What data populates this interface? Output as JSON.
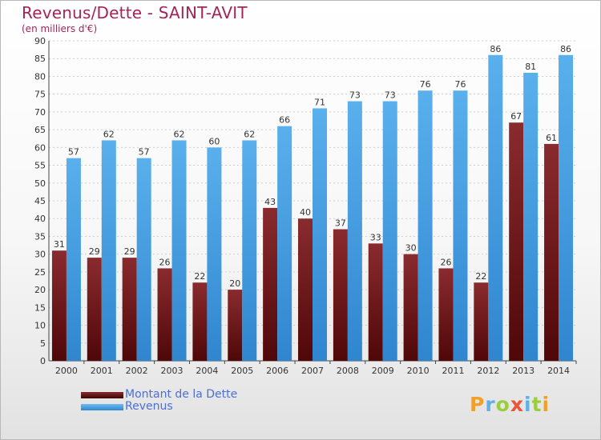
{
  "header": {
    "title": "Revenus/Dette - SAINT-AVIT",
    "subtitle": "(en milliers d'€)"
  },
  "logo": {
    "text": "Proxiti",
    "letters": [
      {
        "char": "P",
        "color": "#f0a02b"
      },
      {
        "char": "r",
        "color": "#5fb0e5"
      },
      {
        "char": "o",
        "color": "#9acd42"
      },
      {
        "char": "x",
        "color": "#e8553a"
      },
      {
        "char": "i",
        "color": "#5fb0e5"
      },
      {
        "char": "t",
        "color": "#9acd42"
      },
      {
        "char": "i",
        "color": "#f0a02b"
      }
    ]
  },
  "chart_data": {
    "type": "bar",
    "title": "Revenus/Dette - SAINT-AVIT",
    "subtitle": "(en milliers d'€)",
    "categories": [
      "2000",
      "2001",
      "2002",
      "2003",
      "2004",
      "2005",
      "2006",
      "2007",
      "2008",
      "2009",
      "2010",
      "2011",
      "2012",
      "2013",
      "2014"
    ],
    "series": [
      {
        "name": "Montant de la Dette",
        "color": "#7b1f22",
        "values": [
          31,
          29,
          29,
          26,
          22,
          20,
          43,
          40,
          37,
          33,
          30,
          26,
          22,
          67,
          61
        ]
      },
      {
        "name": "Revenus",
        "color": "#4aa3e6",
        "values": [
          57,
          62,
          57,
          62,
          60,
          62,
          66,
          71,
          73,
          73,
          76,
          76,
          86,
          81,
          86
        ]
      }
    ],
    "ylim": [
      0,
      90
    ],
    "yticks": [
      0,
      5,
      10,
      15,
      20,
      25,
      30,
      35,
      40,
      45,
      50,
      55,
      60,
      65,
      70,
      75,
      80,
      85,
      90
    ],
    "grid": true,
    "legend": "bottom-left",
    "data_labels": true
  }
}
